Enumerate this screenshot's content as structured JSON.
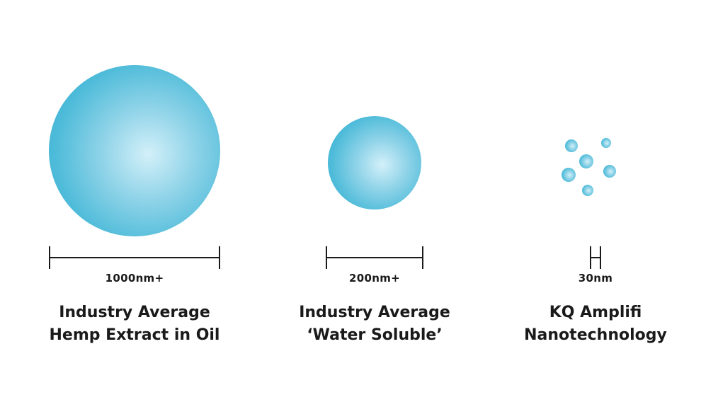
{
  "colors": {
    "sphere_base": "#38afd0",
    "sphere_highlight": "#d3f0f9",
    "text": "#1a1a1a"
  },
  "items": [
    {
      "size_label": "1000nm+",
      "caption_line1": "Industry Average",
      "caption_line2": "Hemp Extract in Oil"
    },
    {
      "size_label": "200nm+",
      "caption_line1": "Industry Average",
      "caption_line2": "‘Water Soluble’"
    },
    {
      "size_label": "30nm",
      "caption_line1": "KQ Amplifi",
      "caption_line2": "Nanotechnology"
    }
  ]
}
